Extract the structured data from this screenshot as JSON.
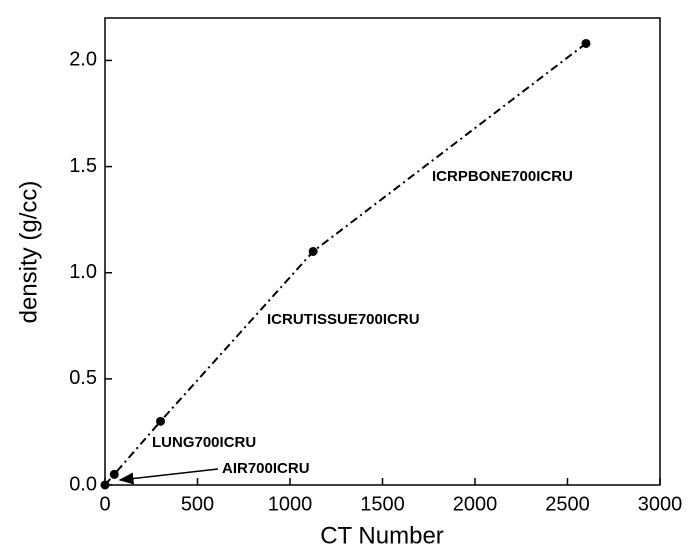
{
  "chart_data": {
    "type": "line",
    "x_label": "CT Number",
    "y_label": "density (g/cc)",
    "x": [
      0,
      50,
      300,
      1125,
      2600
    ],
    "series": [
      {
        "color": "#000000",
        "values": [
          0,
          0.05,
          0.3,
          1.1,
          2.08
        ]
      }
    ],
    "xlim": [
      0,
      3000
    ],
    "xticks": [
      0,
      500,
      1000,
      1500,
      2000,
      2500,
      3000
    ],
    "ylim": [
      0,
      2.2
    ],
    "yticks": [
      {
        "value": 0,
        "label": "0.0"
      },
      0.5,
      {
        "value": 1,
        "label": "1.0"
      },
      1.5,
      {
        "value": 2,
        "label": "2.0"
      }
    ],
    "annotations": [
      "ICRPBONE700ICRU",
      "ICRUTISSUE700ICRU",
      "LUNG700ICRU",
      "AIR700ICRU"
    ]
  }
}
